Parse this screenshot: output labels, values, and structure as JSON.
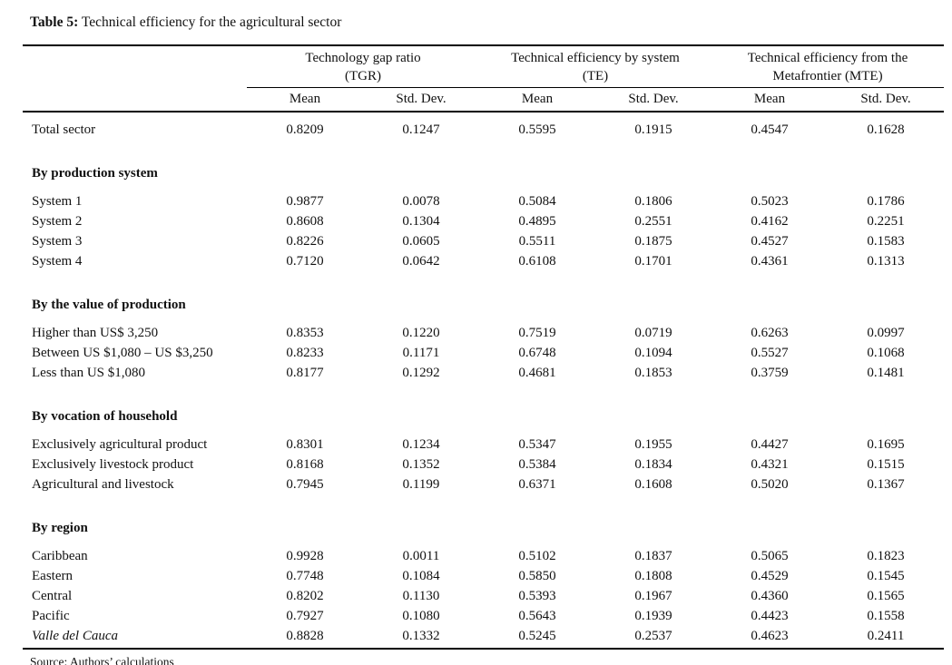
{
  "title": {
    "label": "Table 5:",
    "text": " Technical efficiency for the agricultural sector"
  },
  "table": {
    "column_groups": [
      {
        "line1": "Technology gap ratio",
        "line2": "(TGR)"
      },
      {
        "line1": "Technical efficiency by system",
        "line2": "(TE)"
      },
      {
        "line1": "Technical efficiency from the",
        "line2": "Metafrontier (MTE)"
      }
    ],
    "subheaders": [
      "Mean",
      "Std. Dev.",
      "Mean",
      "Std. Dev.",
      "Mean",
      "Std. Dev."
    ],
    "rows": [
      {
        "type": "data",
        "label": "Total sector",
        "values": [
          "0.8209",
          "0.1247",
          "0.5595",
          "0.1915",
          "0.4547",
          "0.1628"
        ]
      },
      {
        "type": "section",
        "label": "By production system"
      },
      {
        "type": "data",
        "label": "System 1",
        "values": [
          "0.9877",
          "0.0078",
          "0.5084",
          "0.1806",
          "0.5023",
          "0.1786"
        ]
      },
      {
        "type": "data",
        "label": "System 2",
        "values": [
          "0.8608",
          "0.1304",
          "0.4895",
          "0.2551",
          "0.4162",
          "0.2251"
        ]
      },
      {
        "type": "data",
        "label": "System 3",
        "values": [
          "0.8226",
          "0.0605",
          "0.5511",
          "0.1875",
          "0.4527",
          "0.1583"
        ]
      },
      {
        "type": "data",
        "label": "System 4",
        "values": [
          "0.7120",
          "0.0642",
          "0.6108",
          "0.1701",
          "0.4361",
          "0.1313"
        ]
      },
      {
        "type": "section",
        "label": "By the value of production"
      },
      {
        "type": "data",
        "label": "Higher than US$ 3,250",
        "values": [
          "0.8353",
          "0.1220",
          "0.7519",
          "0.0719",
          "0.6263",
          "0.0997"
        ]
      },
      {
        "type": "data",
        "label": "Between US $1,080 – US $3,250",
        "values": [
          "0.8233",
          "0.1171",
          "0.6748",
          "0.1094",
          "0.5527",
          "0.1068"
        ]
      },
      {
        "type": "data",
        "label": "Less than US $1,080",
        "values": [
          "0.8177",
          "0.1292",
          "0.4681",
          "0.1853",
          "0.3759",
          "0.1481"
        ]
      },
      {
        "type": "section",
        "label": "By vocation of household"
      },
      {
        "type": "data",
        "label": "Exclusively agricultural product",
        "values": [
          "0.8301",
          "0.1234",
          "0.5347",
          "0.1955",
          "0.4427",
          "0.1695"
        ]
      },
      {
        "type": "data",
        "label": "Exclusively livestock product",
        "values": [
          "0.8168",
          "0.1352",
          "0.5384",
          "0.1834",
          "0.4321",
          "0.1515"
        ]
      },
      {
        "type": "data",
        "label": "Agricultural and livestock",
        "values": [
          "0.7945",
          "0.1199",
          "0.6371",
          "0.1608",
          "0.5020",
          "0.1367"
        ]
      },
      {
        "type": "section",
        "label": "By region"
      },
      {
        "type": "data",
        "label": "Caribbean",
        "values": [
          "0.9928",
          "0.0011",
          "0.5102",
          "0.1837",
          "0.5065",
          "0.1823"
        ]
      },
      {
        "type": "data",
        "label": "Eastern",
        "values": [
          "0.7748",
          "0.1084",
          "0.5850",
          "0.1808",
          "0.4529",
          "0.1545"
        ]
      },
      {
        "type": "data",
        "label": "Central",
        "values": [
          "0.8202",
          "0.1130",
          "0.5393",
          "0.1967",
          "0.4360",
          "0.1565"
        ]
      },
      {
        "type": "data",
        "label": "Pacific",
        "values": [
          "0.7927",
          "0.1080",
          "0.5643",
          "0.1939",
          "0.4423",
          "0.1558"
        ]
      },
      {
        "type": "data",
        "label": "Valle del Cauca",
        "italic": true,
        "values": [
          "0.8828",
          "0.1332",
          "0.5245",
          "0.2537",
          "0.4623",
          "0.2411"
        ]
      }
    ]
  },
  "footer": {
    "source": "Source: Authors’ calculations"
  }
}
